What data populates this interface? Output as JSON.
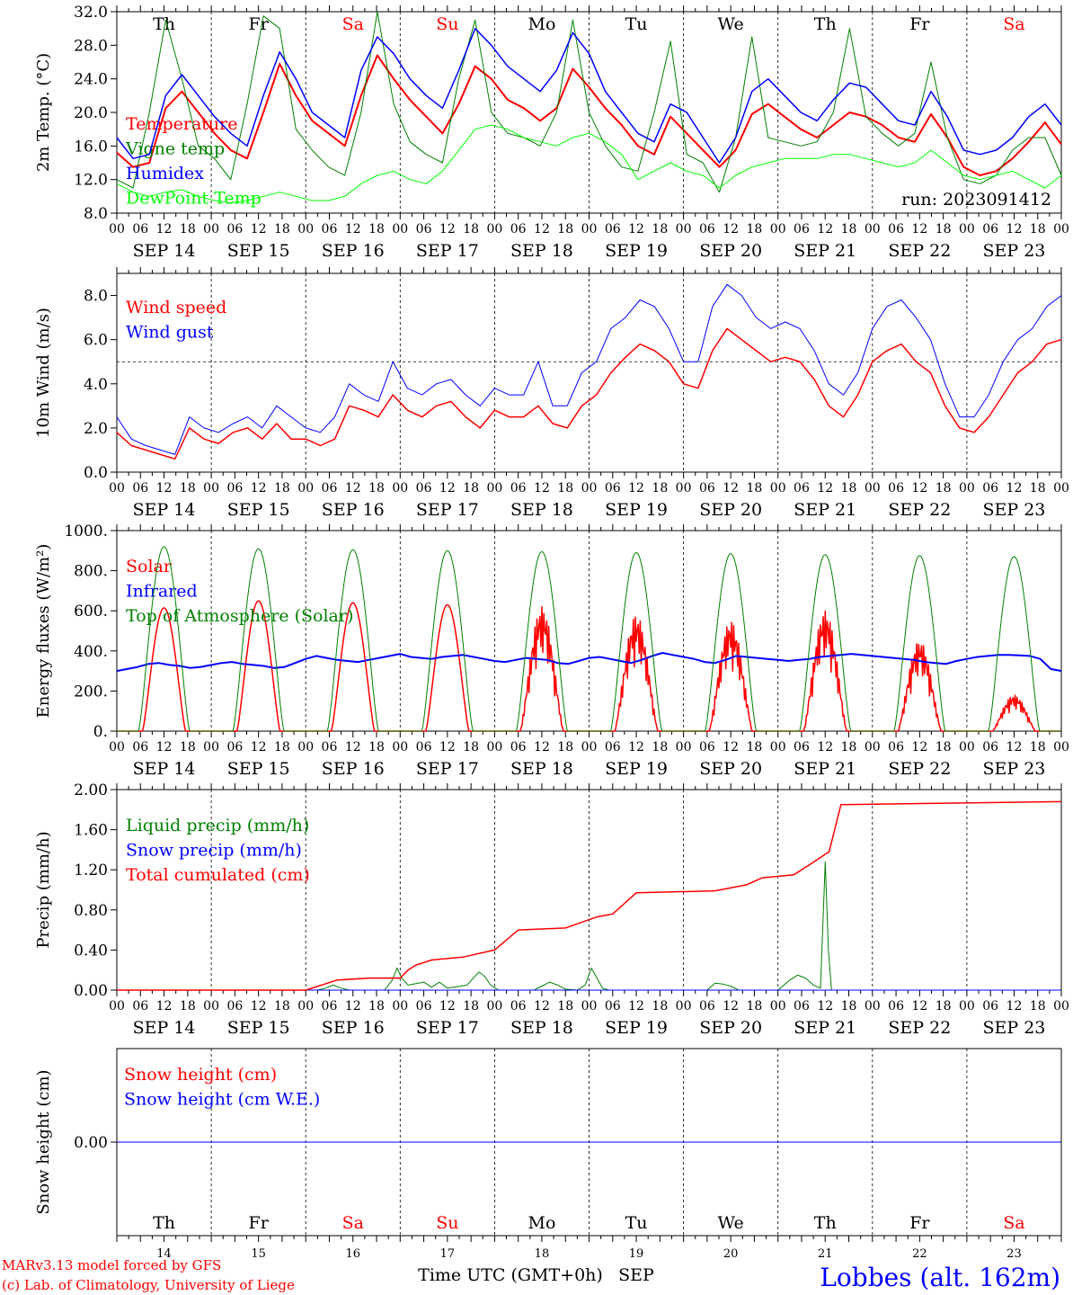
{
  "chart_data": [
    {
      "type": "line",
      "ylabel": "2m Temp. (°C)",
      "ylim": [
        8,
        32
      ],
      "ticks": [
        "8.0",
        "12.0",
        "16.0",
        "20.0",
        "24.0",
        "28.0",
        "32.0"
      ],
      "run_label": "run: 2023091412",
      "series": [
        {
          "name": "Temperature",
          "color": "#ff0000",
          "width": 2,
          "values": [
            15.2,
            13.5,
            14.0,
            20.5,
            22.5,
            20.0,
            17.5,
            15.5,
            14.5,
            20.0,
            25.8,
            22.0,
            19.0,
            17.5,
            16.0,
            22.0,
            26.8,
            24.0,
            21.5,
            19.5,
            17.5,
            21.0,
            25.5,
            24.0,
            21.5,
            20.5,
            19.0,
            20.5,
            25.2,
            23.0,
            20.5,
            18.5,
            16.0,
            15.0,
            19.5,
            17.5,
            15.5,
            13.5,
            15.5,
            19.8,
            21.0,
            19.5,
            18.0,
            17.0,
            18.5,
            20.0,
            19.5,
            18.5,
            17.0,
            16.5,
            19.8,
            17.0,
            13.5,
            12.5,
            13.0,
            14.5,
            16.5,
            18.8,
            16.2
          ]
        },
        {
          "name": "Vigne temp",
          "color": "#008000",
          "width": 1,
          "values": [
            12.0,
            11.0,
            20.0,
            31.0,
            24.0,
            16.0,
            14.5,
            12.0,
            21.0,
            31.5,
            30.0,
            18.0,
            15.5,
            13.5,
            12.5,
            20.0,
            32.0,
            21.0,
            16.5,
            15.0,
            14.0,
            24.0,
            31.0,
            20.0,
            17.5,
            17.0,
            16.0,
            20.0,
            31.0,
            20.0,
            16.0,
            13.5,
            13.0,
            20.0,
            28.5,
            15.0,
            14.0,
            10.5,
            17.0,
            29.0,
            17.0,
            16.5,
            16.0,
            16.5,
            20.0,
            30.0,
            19.5,
            17.5,
            16.0,
            17.5,
            26.0,
            17.0,
            12.0,
            11.5,
            12.5,
            15.5,
            17.0,
            17.0,
            12.5
          ]
        },
        {
          "name": "Humidex",
          "color": "#0000ff",
          "width": 1.5,
          "values": [
            17.0,
            14.5,
            15.0,
            22.0,
            24.5,
            22.0,
            19.5,
            17.5,
            16.0,
            22.0,
            27.2,
            24.0,
            20.0,
            18.5,
            17.0,
            25.0,
            29.0,
            27.0,
            24.0,
            22.0,
            20.5,
            25.0,
            30.0,
            28.0,
            25.5,
            24.0,
            22.5,
            25.0,
            29.5,
            27.0,
            22.5,
            20.0,
            17.5,
            16.5,
            21.0,
            20.0,
            17.0,
            14.0,
            17.0,
            22.5,
            24.0,
            22.0,
            20.0,
            19.0,
            21.5,
            23.5,
            23.0,
            21.0,
            19.0,
            18.5,
            22.5,
            19.5,
            15.5,
            15.0,
            15.5,
            17.0,
            19.5,
            21.0,
            18.5
          ]
        },
        {
          "name": "DewPoint Temp",
          "color": "#00ff00",
          "width": 1,
          "values": [
            11.5,
            10.5,
            10.0,
            10.5,
            10.8,
            10.0,
            9.5,
            9.2,
            9.5,
            10.0,
            10.5,
            10.0,
            9.5,
            9.5,
            10.0,
            11.5,
            12.5,
            13.0,
            12.0,
            11.5,
            13.0,
            15.5,
            18.0,
            18.5,
            18.0,
            17.0,
            16.5,
            16.0,
            17.0,
            17.5,
            16.5,
            15.0,
            12.0,
            13.0,
            14.0,
            13.0,
            12.5,
            11.0,
            12.5,
            13.5,
            14.0,
            14.5,
            14.5,
            14.5,
            15.0,
            15.0,
            14.5,
            14.0,
            13.5,
            14.0,
            15.5,
            14.0,
            12.5,
            12.0,
            12.5,
            13.0,
            12.0,
            11.0,
            12.5
          ]
        }
      ]
    },
    {
      "type": "line",
      "ylabel": "10m Wind (m/s)",
      "ylim": [
        0,
        9
      ],
      "ticks": [
        "0.0",
        "2.0",
        "4.0",
        "6.0",
        "8.0"
      ],
      "refline": 5,
      "series": [
        {
          "name": "Wind speed",
          "color": "#ff0000",
          "width": 1.5,
          "values": [
            1.8,
            1.2,
            1.0,
            0.8,
            0.6,
            2.0,
            1.5,
            1.3,
            1.8,
            2.0,
            1.5,
            2.2,
            1.5,
            1.5,
            1.2,
            1.5,
            3.0,
            2.8,
            2.5,
            3.5,
            2.8,
            2.5,
            3.0,
            3.2,
            2.5,
            2.0,
            2.8,
            2.5,
            2.5,
            3.0,
            2.2,
            2.0,
            3.0,
            3.5,
            4.5,
            5.2,
            5.8,
            5.5,
            5.0,
            4.0,
            3.8,
            5.5,
            6.5,
            6.0,
            5.5,
            5.0,
            5.2,
            5.0,
            4.2,
            3.0,
            2.5,
            3.5,
            5.0,
            5.5,
            5.8,
            5.0,
            4.5,
            3.0,
            2.0,
            1.8,
            2.5,
            3.5,
            4.5,
            5.0,
            5.8,
            6.0
          ]
        },
        {
          "name": "Wind gust",
          "color": "#0000ff",
          "width": 1,
          "values": [
            2.5,
            1.5,
            1.2,
            1.0,
            0.8,
            2.5,
            2.0,
            1.8,
            2.2,
            2.5,
            2.0,
            3.0,
            2.5,
            2.0,
            1.8,
            2.5,
            4.0,
            3.5,
            3.2,
            5.0,
            3.8,
            3.5,
            4.0,
            4.2,
            3.5,
            3.0,
            3.8,
            3.5,
            3.5,
            5.0,
            3.0,
            3.0,
            4.5,
            5.0,
            6.5,
            7.0,
            7.8,
            7.5,
            6.5,
            5.0,
            5.0,
            7.5,
            8.5,
            8.0,
            7.0,
            6.5,
            6.8,
            6.5,
            5.5,
            4.0,
            3.5,
            4.5,
            6.5,
            7.5,
            7.8,
            7.0,
            6.0,
            4.0,
            2.5,
            2.5,
            3.5,
            5.0,
            6.0,
            6.5,
            7.5,
            8.0
          ]
        }
      ]
    },
    {
      "type": "line",
      "ylabel": "Energy fluxes (W/m²)",
      "ylim": [
        0,
        1000
      ],
      "ticks": [
        "0.",
        "200.",
        "400.",
        "600.",
        "800.",
        "1000."
      ],
      "series": [
        {
          "name": "Solar",
          "color": "#ff0000",
          "width": 1.5,
          "peaks": [
            615,
            650,
            640,
            630,
            620,
            580,
            550,
            600,
            450,
            180
          ]
        },
        {
          "name": "Infrared",
          "color": "#0000ff",
          "width": 2,
          "values": [
            300,
            310,
            320,
            335,
            340,
            330,
            325,
            315,
            320,
            330,
            340,
            345,
            335,
            330,
            325,
            315,
            320,
            340,
            360,
            375,
            365,
            355,
            350,
            345,
            355,
            365,
            375,
            385,
            370,
            365,
            360,
            370,
            375,
            380,
            370,
            360,
            350,
            345,
            355,
            365,
            360,
            355,
            340,
            335,
            350,
            365,
            370,
            360,
            350,
            340,
            355,
            375,
            390,
            380,
            370,
            360,
            345,
            340,
            355,
            375,
            370,
            365,
            360,
            355,
            350,
            355,
            360,
            370,
            375,
            380,
            385,
            380,
            375,
            370,
            365,
            360,
            355,
            345,
            340,
            335,
            350,
            360,
            370,
            375,
            380,
            380,
            378,
            375,
            360,
            310,
            300
          ]
        },
        {
          "name": "Top of Atmosphere (Solar)",
          "color": "#008000",
          "width": 1,
          "peaks": [
            920,
            910,
            905,
            900,
            895,
            890,
            885,
            880,
            875,
            870
          ]
        }
      ]
    },
    {
      "type": "line",
      "ylabel": "Precip (mm/h)",
      "ylim": [
        0,
        2
      ],
      "ticks": [
        "0.00",
        "0.40",
        "0.80",
        "1.20",
        "1.60",
        "2.00"
      ],
      "series": [
        {
          "name": "Liquid precip (mm/h)",
          "color": "#008000",
          "width": 1,
          "points": [
            [
              0,
              0
            ],
            [
              25.5,
              0
            ],
            [
              26.5,
              0.02
            ],
            [
              27.5,
              0.05
            ],
            [
              28.5,
              0.02
            ],
            [
              29.5,
              0
            ],
            [
              34,
              0
            ],
            [
              35,
              0.1
            ],
            [
              35.6,
              0.22
            ],
            [
              36.2,
              0.12
            ],
            [
              37,
              0.05
            ],
            [
              39,
              0.08
            ],
            [
              40,
              0.03
            ],
            [
              41,
              0.08
            ],
            [
              42,
              0.02
            ],
            [
              44.5,
              0.05
            ],
            [
              45.3,
              0.12
            ],
            [
              46,
              0.18
            ],
            [
              46.7,
              0.14
            ],
            [
              47.5,
              0.05
            ],
            [
              48.5,
              0
            ],
            [
              53,
              0
            ],
            [
              54,
              0.04
            ],
            [
              55,
              0.08
            ],
            [
              56,
              0.05
            ],
            [
              57,
              0.01
            ],
            [
              58.5,
              0
            ],
            [
              59.5,
              0.05
            ],
            [
              60.3,
              0.22
            ],
            [
              61,
              0.12
            ],
            [
              61.7,
              0.02
            ],
            [
              62.5,
              0
            ],
            [
              75,
              0
            ],
            [
              76,
              0.07
            ],
            [
              77,
              0.06
            ],
            [
              78,
              0.04
            ],
            [
              79,
              0
            ],
            [
              84,
              0
            ],
            [
              85.5,
              0.1
            ],
            [
              86.5,
              0.15
            ],
            [
              87.5,
              0.12
            ],
            [
              88.5,
              0.05
            ],
            [
              89.4,
              0.02
            ],
            [
              90,
              1.28
            ],
            [
              90.4,
              0.4
            ],
            [
              90.8,
              0
            ],
            [
              120,
              0
            ]
          ]
        },
        {
          "name": "Snow precip (mm/h)",
          "color": "#0000ff",
          "width": 1,
          "points": [
            [
              0,
              0
            ],
            [
              120,
              0
            ]
          ]
        },
        {
          "name": "Total cumulated (cm)",
          "color": "#ff0000",
          "width": 1.5,
          "points": [
            [
              0,
              0
            ],
            [
              24,
              0
            ],
            [
              28,
              0.1
            ],
            [
              32,
              0.12
            ],
            [
              36,
              0.12
            ],
            [
              37,
              0.2
            ],
            [
              38,
              0.25
            ],
            [
              40,
              0.3
            ],
            [
              44,
              0.33
            ],
            [
              48,
              0.4
            ],
            [
              51,
              0.6
            ],
            [
              57,
              0.62
            ],
            [
              61,
              0.73
            ],
            [
              63,
              0.76
            ],
            [
              66,
              0.97
            ],
            [
              76,
              0.99
            ],
            [
              80,
              1.05
            ],
            [
              82,
              1.12
            ],
            [
              86,
              1.15
            ],
            [
              88,
              1.25
            ],
            [
              90.5,
              1.38
            ],
            [
              92,
              1.85
            ],
            [
              120,
              1.88
            ]
          ]
        }
      ]
    },
    {
      "type": "line",
      "ylabel": "Snow height (cm)",
      "ylim": [
        -1,
        1
      ],
      "ticks": [
        "0.00"
      ],
      "series": [
        {
          "name": "Snow height (cm)",
          "color": "#ff0000",
          "width": 1,
          "values": [
            0,
            0
          ]
        },
        {
          "name": "Snow height (cm W.E.)",
          "color": "#0000ff",
          "width": 1,
          "values": [
            0,
            0
          ]
        }
      ]
    }
  ],
  "axis": {
    "hour_ticks": [
      "00",
      "06",
      "12",
      "18"
    ],
    "end_tick": "00",
    "day_labels": [
      "SEP 14",
      "SEP 15",
      "SEP 16",
      "SEP 17",
      "SEP 18",
      "SEP 19",
      "SEP 20",
      "SEP 21",
      "SEP 22",
      "SEP 23"
    ],
    "weekdays": [
      "Th",
      "Fr",
      "Sa",
      "Su",
      "Mo",
      "Tu",
      "We",
      "Th",
      "Fr",
      "Sa"
    ],
    "weekend_color": "#ff0000",
    "day_numbers": [
      "14",
      "15",
      "16",
      "17",
      "18",
      "19",
      "20",
      "21",
      "22",
      "23"
    ]
  },
  "footer": {
    "credit1": "MARv3.13 model forced by GFS",
    "credit2": "(c) Lab. of Climatology, University of Liege",
    "xlabel": "Time UTC (GMT+0h)",
    "month": "SEP",
    "station": "Lobbes (alt. 162m)",
    "credit_color": "#ff0000",
    "station_color": "#0000ff"
  }
}
